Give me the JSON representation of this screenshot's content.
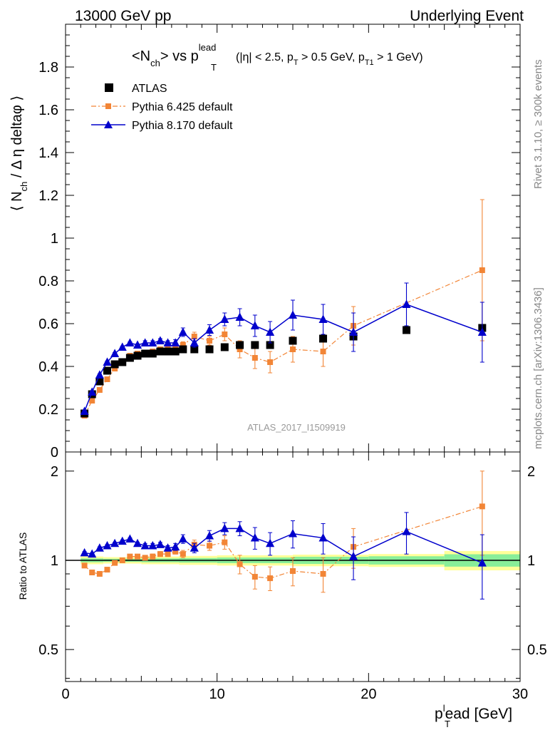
{
  "header": {
    "left": "13000 GeV pp",
    "right": "Underlying Event"
  },
  "side_labels": {
    "rivet": "Rivet 3.1.10, ≥ 300k events",
    "mcplots": "mcplots.cern.ch [arXiv:1306.3436]"
  },
  "watermark": "ATLAS_2017_I1509919",
  "colors": {
    "atlas": "#000000",
    "pythia6": "#f28536",
    "pythia8": "#0000cc",
    "band_outer": "#ffff99",
    "band_inner": "#88ee99"
  },
  "chart_data": [
    {
      "type": "scatter",
      "panel": "main",
      "title": "<Nch> vs pT^lead (|η| < 2.5, pT > 0.5 GeV, pT1 > 1 GeV)",
      "title_parts": {
        "main": "<N",
        "sub": "ch",
        "mid": "> vs p",
        "lead_sup": "lead",
        "lead_sub": "T",
        "cuts_a": "(|η| < 2.5, p",
        "cuts_sub1": "T",
        "cuts_b": " > 0.5 GeV, p",
        "cuts_sub2": "T1",
        "cuts_c": " > 1 GeV)"
      },
      "ylabel": "⟨ Nch / Δη deltaφ ⟩",
      "ylabel_parts": {
        "a": "⟨ N",
        "sub": "ch",
        "b": " / Δ η deltaφ ⟩"
      },
      "xlim": [
        0,
        30
      ],
      "ylim": [
        0,
        2.0
      ],
      "yticks": [
        "0",
        "0.2",
        "0.4",
        "0.6",
        "0.8",
        "1",
        "1.2",
        "1.4",
        "1.6",
        "1.8"
      ],
      "legend_position": "top-left",
      "series": [
        {
          "name": "ATLAS",
          "marker": "square",
          "x": [
            1.25,
            1.75,
            2.25,
            2.75,
            3.25,
            3.75,
            4.25,
            4.75,
            5.25,
            5.75,
            6.25,
            6.75,
            7.25,
            7.75,
            8.5,
            9.5,
            10.5,
            11.5,
            12.5,
            13.5,
            15,
            17,
            19,
            22.5,
            27.5
          ],
          "y": [
            0.18,
            0.27,
            0.33,
            0.38,
            0.41,
            0.42,
            0.44,
            0.45,
            0.46,
            0.46,
            0.47,
            0.47,
            0.47,
            0.48,
            0.48,
            0.48,
            0.49,
            0.5,
            0.5,
            0.5,
            0.52,
            0.53,
            0.54,
            0.57,
            0.58
          ],
          "yerr": [
            0,
            0,
            0,
            0,
            0,
            0,
            0,
            0,
            0,
            0,
            0,
            0,
            0,
            0,
            0,
            0,
            0,
            0,
            0,
            0,
            0,
            0,
            0,
            0,
            0
          ]
        },
        {
          "name": "Pythia 6.425 default",
          "marker": "small-square",
          "line": "dashdot",
          "x": [
            1.25,
            1.75,
            2.25,
            2.75,
            3.25,
            3.75,
            4.25,
            4.75,
            5.25,
            5.75,
            6.25,
            6.75,
            7.25,
            7.75,
            8.5,
            9.5,
            10.5,
            11.5,
            12.5,
            13.5,
            15,
            17,
            19,
            27.5
          ],
          "y": [
            0.17,
            0.24,
            0.29,
            0.34,
            0.39,
            0.42,
            0.45,
            0.46,
            0.46,
            0.47,
            0.48,
            0.48,
            0.49,
            0.5,
            0.54,
            0.52,
            0.55,
            0.48,
            0.44,
            0.42,
            0.48,
            0.47,
            0.59,
            0.85
          ],
          "yerr": [
            0.005,
            0.005,
            0.005,
            0.005,
            0.005,
            0.005,
            0.005,
            0.005,
            0.005,
            0.01,
            0.01,
            0.01,
            0.01,
            0.015,
            0.02,
            0.02,
            0.03,
            0.04,
            0.05,
            0.05,
            0.06,
            0.07,
            0.09,
            0.33
          ]
        },
        {
          "name": "Pythia 8.170 default",
          "marker": "triangle",
          "line": "solid",
          "x": [
            1.25,
            1.75,
            2.25,
            2.75,
            3.25,
            3.75,
            4.25,
            4.75,
            5.25,
            5.75,
            6.25,
            6.75,
            7.25,
            7.75,
            8.5,
            9.5,
            10.5,
            11.5,
            12.5,
            13.5,
            15,
            17,
            19,
            22.5,
            27.5
          ],
          "y": [
            0.19,
            0.28,
            0.36,
            0.42,
            0.46,
            0.49,
            0.51,
            0.5,
            0.51,
            0.51,
            0.52,
            0.51,
            0.51,
            0.56,
            0.51,
            0.57,
            0.62,
            0.63,
            0.59,
            0.56,
            0.64,
            0.62,
            0.56,
            0.69,
            0.56
          ],
          "yerr": [
            0.005,
            0.005,
            0.005,
            0.005,
            0.005,
            0.005,
            0.005,
            0.005,
            0.01,
            0.01,
            0.01,
            0.01,
            0.015,
            0.02,
            0.02,
            0.025,
            0.03,
            0.04,
            0.05,
            0.05,
            0.07,
            0.07,
            0.09,
            0.1,
            0.14
          ]
        }
      ]
    },
    {
      "type": "scatter",
      "panel": "ratio",
      "ylabel": "Ratio to ATLAS",
      "xlabel": "pT^lead [GeV]",
      "xlabel_parts": {
        "a": "p",
        "sup": "l",
        "sub": "T",
        "b": "ead [GeV]"
      },
      "xlim": [
        0,
        30
      ],
      "ylim": [
        0.39,
        2.32
      ],
      "xticks": [
        "0",
        "10",
        "20",
        "30"
      ],
      "yticks": [
        "0.5",
        "1",
        "2"
      ],
      "band_edges": [
        1,
        2.5,
        5,
        7.5,
        10,
        15,
        20,
        25,
        30
      ],
      "band_outer": [
        0.03,
        0.025,
        0.03,
        0.035,
        0.04,
        0.045,
        0.05,
        0.075
      ],
      "band_inner": [
        0.015,
        0.012,
        0.015,
        0.018,
        0.022,
        0.028,
        0.032,
        0.048
      ],
      "series": [
        {
          "name": "Pythia 6.425 default",
          "x": [
            1.25,
            1.75,
            2.25,
            2.75,
            3.25,
            3.75,
            4.25,
            4.75,
            5.25,
            5.75,
            6.25,
            6.75,
            7.25,
            7.75,
            8.5,
            9.5,
            10.5,
            11.5,
            12.5,
            13.5,
            15,
            17,
            19,
            27.5
          ],
          "y": [
            0.96,
            0.91,
            0.9,
            0.93,
            0.98,
            1.0,
            1.03,
            1.03,
            1.02,
            1.03,
            1.05,
            1.05,
            1.07,
            1.05,
            1.13,
            1.12,
            1.15,
            0.97,
            0.88,
            0.87,
            0.92,
            0.9,
            1.11,
            1.52
          ],
          "yerr": [
            0.01,
            0.01,
            0.01,
            0.01,
            0.01,
            0.01,
            0.01,
            0.01,
            0.01,
            0.02,
            0.02,
            0.02,
            0.02,
            0.03,
            0.04,
            0.04,
            0.06,
            0.07,
            0.08,
            0.08,
            0.1,
            0.12,
            0.17,
            0.48
          ]
        },
        {
          "name": "Pythia 8.170 default",
          "x": [
            1.25,
            1.75,
            2.25,
            2.75,
            3.25,
            3.75,
            4.25,
            4.75,
            5.25,
            5.75,
            6.25,
            6.75,
            7.25,
            7.75,
            8.5,
            9.5,
            10.5,
            11.5,
            12.5,
            13.5,
            15,
            17,
            19,
            22.5,
            27.5
          ],
          "y": [
            1.06,
            1.05,
            1.1,
            1.12,
            1.14,
            1.16,
            1.18,
            1.14,
            1.12,
            1.12,
            1.13,
            1.1,
            1.11,
            1.18,
            1.1,
            1.21,
            1.28,
            1.28,
            1.19,
            1.14,
            1.23,
            1.19,
            1.03,
            1.25,
            0.98
          ],
          "yerr": [
            0.01,
            0.01,
            0.01,
            0.01,
            0.01,
            0.01,
            0.01,
            0.01,
            0.02,
            0.02,
            0.02,
            0.02,
            0.03,
            0.04,
            0.04,
            0.05,
            0.06,
            0.07,
            0.1,
            0.1,
            0.13,
            0.14,
            0.17,
            0.2,
            0.24
          ]
        }
      ]
    }
  ]
}
